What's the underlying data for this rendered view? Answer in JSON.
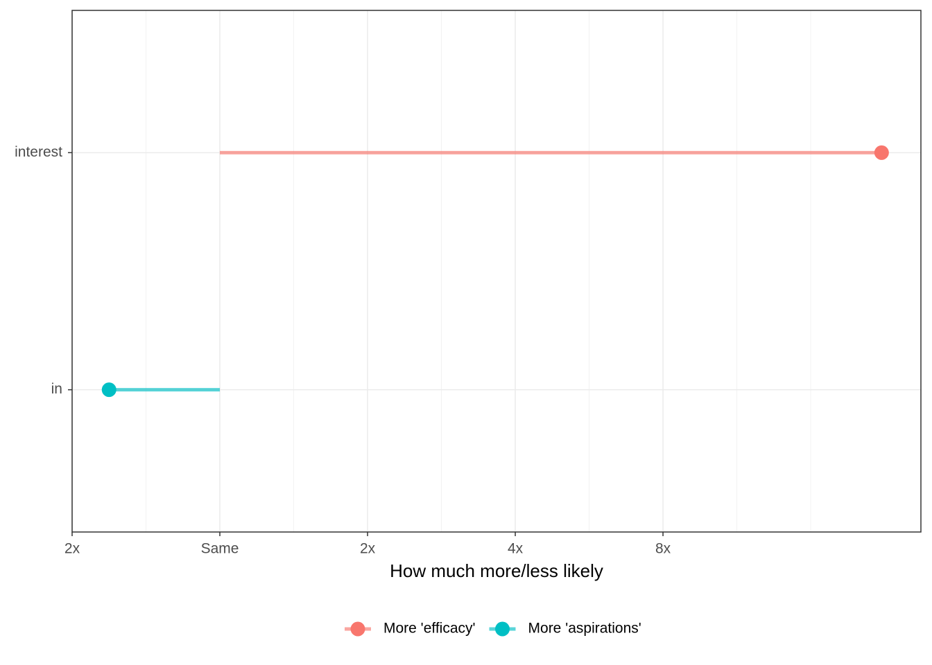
{
  "chart_data": {
    "type": "lollipop",
    "x_label": "How much more/less likely",
    "categories": [
      "interest",
      "in"
    ],
    "series": [
      {
        "name": "More 'efficacy'",
        "color": "#F8766D",
        "values": [
          4.48,
          null
        ]
      },
      {
        "name": "More 'aspirations'",
        "color": "#00BFC4",
        "values": [
          null,
          -0.75
        ]
      }
    ],
    "xlim": [
      -1,
      4.746
    ],
    "xticks": [
      {
        "value": -1,
        "label": "2x"
      },
      {
        "value": 0,
        "label": "Same"
      },
      {
        "value": 1,
        "label": "2x"
      },
      {
        "value": 2,
        "label": "4x"
      },
      {
        "value": 3,
        "label": "8x"
      }
    ],
    "x_minor_grid": [
      -0.5,
      0.5,
      1.5,
      2.5,
      3.5,
      4.0
    ],
    "grid": true,
    "legend": "bottom"
  }
}
